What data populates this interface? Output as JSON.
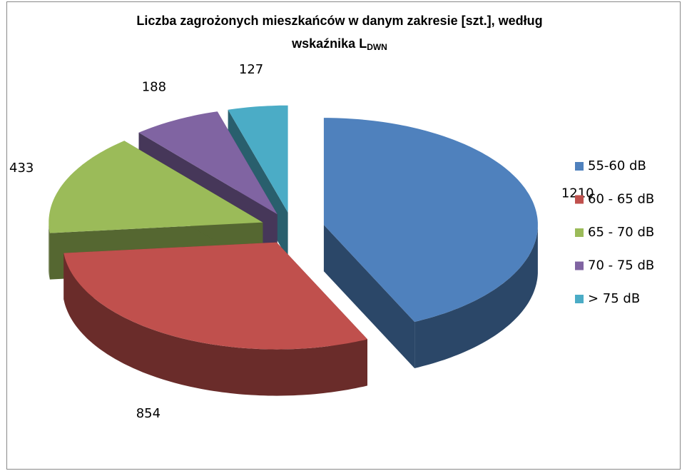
{
  "chart_data": {
    "type": "pie",
    "title": "Liczba zagrożonych mieszkańców w danym zakresie [szt.], według",
    "title_line2": "wskaźnika L",
    "title_subscript": "DWN",
    "categories": [
      "55-60 dB",
      "60 - 65 dB",
      "65 - 70 dB",
      "70 - 75 dB",
      "> 75 dB"
    ],
    "values": [
      1210,
      854,
      433,
      188,
      127
    ],
    "colors": [
      "#4f81bd",
      "#c0504d",
      "#9bbb59",
      "#8064a2",
      "#4bacc6"
    ],
    "legend": "right"
  }
}
